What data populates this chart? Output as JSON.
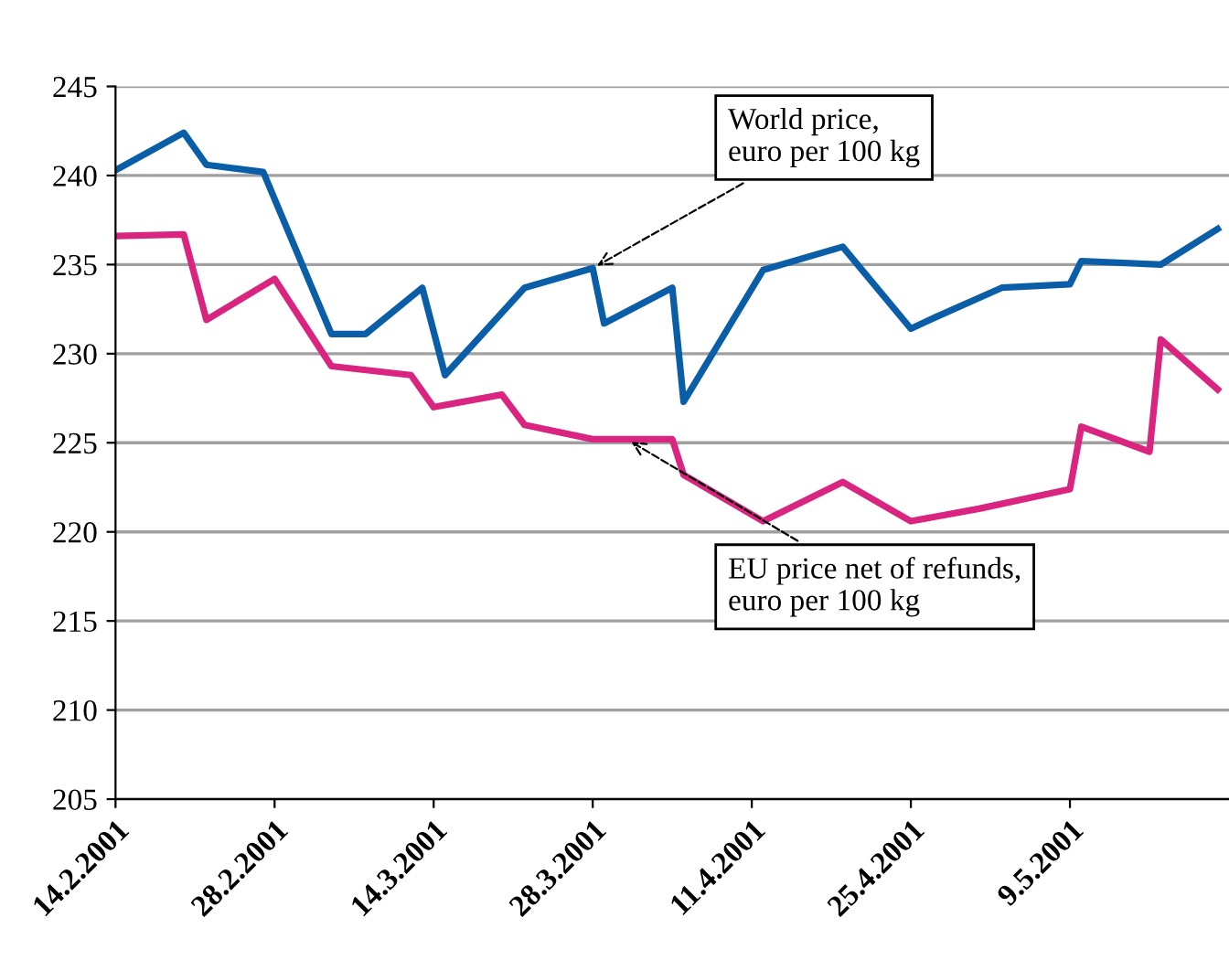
{
  "chart_data": {
    "type": "line",
    "xlim": [
      "2001-02-14",
      "2001-05-23"
    ],
    "xticks": [
      {
        "value": "2001-02-14",
        "label": "14.2.2001"
      },
      {
        "value": "2001-02-28",
        "label": "28.2.2001"
      },
      {
        "value": "2001-03-14",
        "label": "14.3.2001"
      },
      {
        "value": "2001-03-28",
        "label": "28.3.2001"
      },
      {
        "value": "2001-04-11",
        "label": "11.4.2001"
      },
      {
        "value": "2001-04-25",
        "label": "25.4.2001"
      },
      {
        "value": "2001-05-09",
        "label": "9.5.2001"
      }
    ],
    "ylim": [
      205,
      245
    ],
    "yticks": [
      205,
      210,
      215,
      220,
      225,
      230,
      235,
      240,
      245
    ],
    "grid": "y",
    "legend": false,
    "marker": "none",
    "line_style": "solid",
    "series": [
      {
        "color": "#0a5ea8",
        "x": [
          "2001-02-14",
          "2001-02-20",
          "2001-02-22",
          "2001-02-27",
          "2001-03-05",
          "2001-03-08",
          "2001-03-13",
          "2001-03-15",
          "2001-03-22",
          "2001-03-28",
          "2001-03-29",
          "2001-04-04",
          "2001-04-05",
          "2001-04-12",
          "2001-04-19",
          "2001-04-25",
          "2001-04-27",
          "2001-05-03",
          "2001-05-09",
          "2001-05-10",
          "2001-05-17",
          "2001-05-22"
        ],
        "values": [
          240.3,
          242.4,
          240.6,
          240.2,
          231.1,
          231.1,
          233.7,
          228.8,
          233.7,
          234.8,
          231.7,
          233.7,
          227.3,
          234.7,
          236,
          231.4,
          232,
          233.7,
          233.9,
          235.2,
          235,
          237
        ]
      },
      {
        "color": "#d9257f",
        "x": [
          "2001-02-14",
          "2001-02-20",
          "2001-02-22",
          "2001-02-28",
          "2001-03-05",
          "2001-03-12",
          "2001-03-14",
          "2001-03-20",
          "2001-03-22",
          "2001-03-28",
          "2001-04-04",
          "2001-04-05",
          "2001-04-12",
          "2001-04-19",
          "2001-04-25",
          "2001-05-01",
          "2001-05-09",
          "2001-05-10",
          "2001-05-16",
          "2001-05-17",
          "2001-05-22"
        ],
        "values": [
          236.6,
          236.7,
          231.9,
          234.2,
          229.3,
          228.8,
          227,
          227.7,
          226,
          225.2,
          225.2,
          223.2,
          220.6,
          222.8,
          220.6,
          221.3,
          222.4,
          225.9,
          224.5,
          230.8,
          228
        ]
      }
    ],
    "annotations": [
      {
        "text": "World price,\neuro per 100 kg",
        "x": "2001-03-28",
        "y": 234.8
      },
      {
        "text": "EU price net of refunds,\neuro per 100 kg",
        "x": "2001-03-31",
        "y": 225.2
      }
    ]
  }
}
